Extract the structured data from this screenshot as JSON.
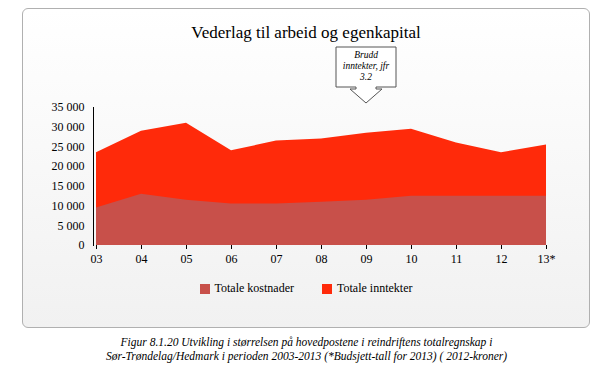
{
  "chart_data": {
    "type": "area",
    "title": "Vederlag til arbeid og egenkapital",
    "caption": "Figur 8.1.20 Utvikling i størrelsen på hovedpostene i reindriftens totalregnskap i\nSør-Trøndelag/Hedmark i perioden 2003-2013 (*Budsjett-tall for 2013) ( 2012-kroner)",
    "categories": [
      "03",
      "04",
      "05",
      "06",
      "07",
      "08",
      "09",
      "10",
      "11",
      "12",
      "13*"
    ],
    "series": [
      {
        "name": "Totale kostnader",
        "color": "#c8504a",
        "values": [
          9500,
          13000,
          11500,
          10500,
          10500,
          11000,
          11500,
          12500,
          12500,
          12500,
          12500
        ]
      },
      {
        "name": "Totale inntekter",
        "color": "#ff2a0a",
        "values": [
          23500,
          29000,
          31000,
          24000,
          26500,
          27000,
          28500,
          29500,
          26000,
          23500,
          25500
        ]
      }
    ],
    "stacked": false,
    "ylim": [
      0,
      35000
    ],
    "yticks": [
      0,
      {
        "value": 5000,
        "label": "5 000"
      },
      {
        "value": 10000,
        "label": "10 000"
      },
      {
        "value": 15000,
        "label": "15 000"
      },
      {
        "value": 20000,
        "label": "20 000"
      },
      {
        "value": 25000,
        "label": "25 000"
      },
      {
        "value": 30000,
        "label": "30 000"
      },
      {
        "value": 35000,
        "label": "35 000"
      }
    ],
    "grid": false,
    "legend": "bottom",
    "annotations": [
      {
        "text": "Brudd\ninntekter, jfr\n3.2",
        "x": "09"
      }
    ]
  }
}
